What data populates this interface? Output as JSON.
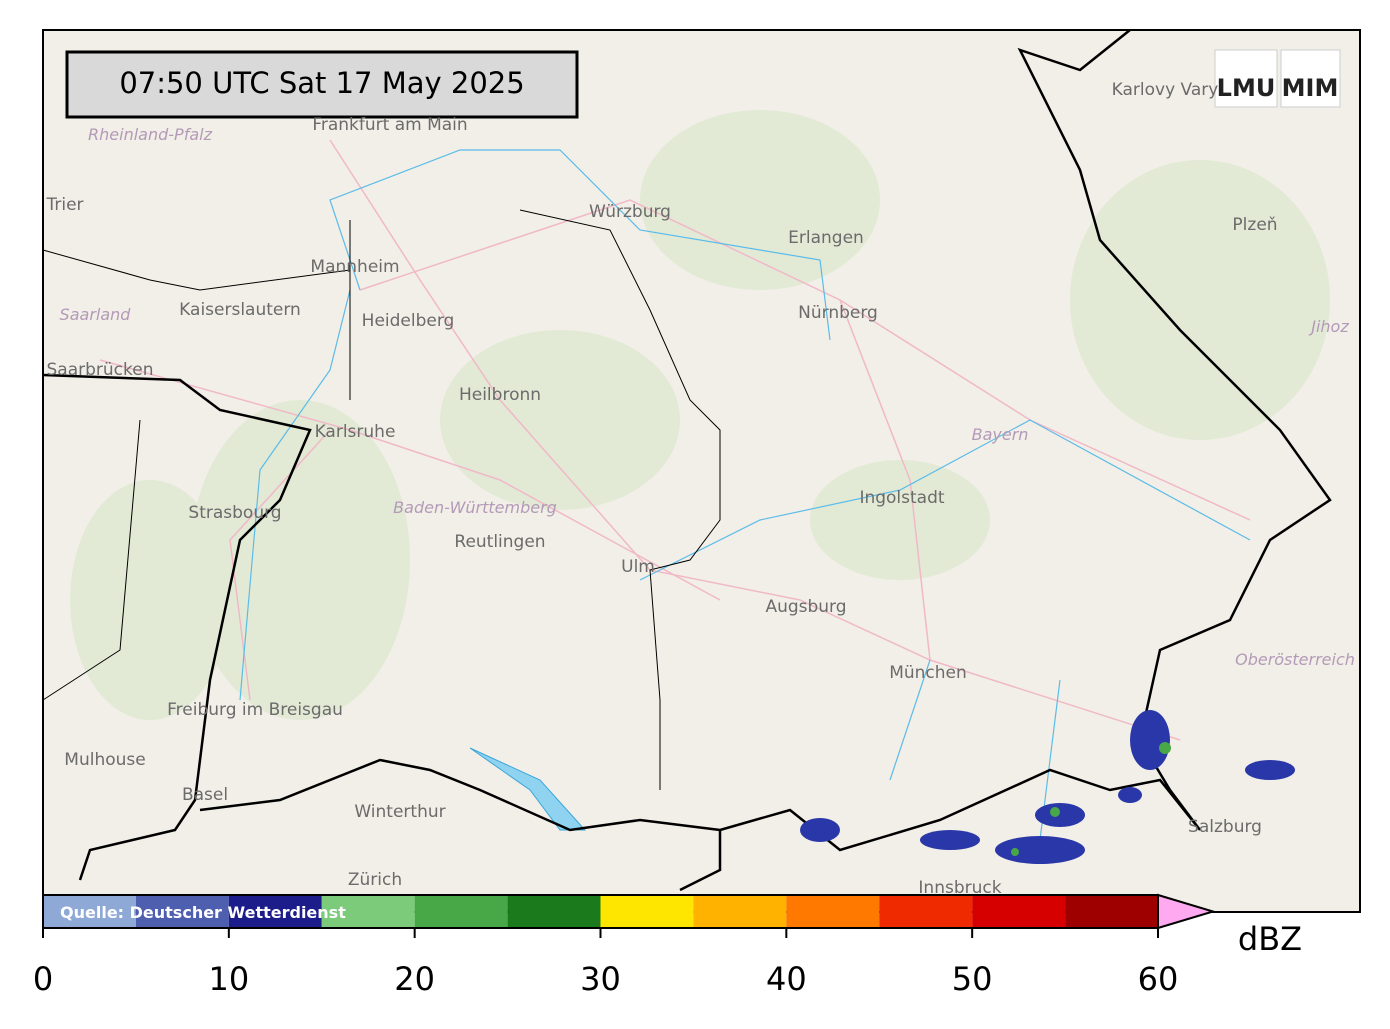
{
  "map": {
    "timestamp": "07:50 UTC  Sat 17 May 2025",
    "logos": [
      "LMU",
      "MIM"
    ],
    "source": "Quelle: Deutscher Wetterdienst",
    "places": [
      "Frankfurt am Main",
      "Würzburg",
      "Karlovy Vary",
      "Erlangen",
      "Plzeň",
      "Trier",
      "Mannheim",
      "Kaiserslautern",
      "Heidelberg",
      "Nürnberg",
      "Saarbrücken",
      "Heilbronn",
      "Karlsruhe",
      "Ingolstadt",
      "Strasbourg",
      "Reutlingen",
      "Ulm",
      "Augsburg",
      "München",
      "Freiburg im Breisgau",
      "Mulhouse",
      "Basel",
      "Winterthur",
      "Zürich",
      "Salzburg",
      "Innsbruck"
    ],
    "regions": [
      "Rheinland-Pfalz",
      "Saarland",
      "Bayern",
      "Baden-Württemberg",
      "Oberösterreich",
      "Jihoz"
    ],
    "colorbar": {
      "bounds": [
        0,
        5,
        10,
        15,
        20,
        25,
        30,
        35,
        40,
        45,
        50,
        55,
        60
      ],
      "colors": [
        "#8ea9d6",
        "#4f5fb0",
        "#1c1c8a",
        "#7bcb7b",
        "#48a848",
        "#1b7a1b",
        "#ffe600",
        "#ffb300",
        "#ff7800",
        "#f02a00",
        "#d60000",
        "#9e0000"
      ],
      "extend_color": "#ffaaf0",
      "ticks": [
        0,
        10,
        20,
        30,
        40,
        50,
        60
      ],
      "unit": "dBZ"
    }
  }
}
